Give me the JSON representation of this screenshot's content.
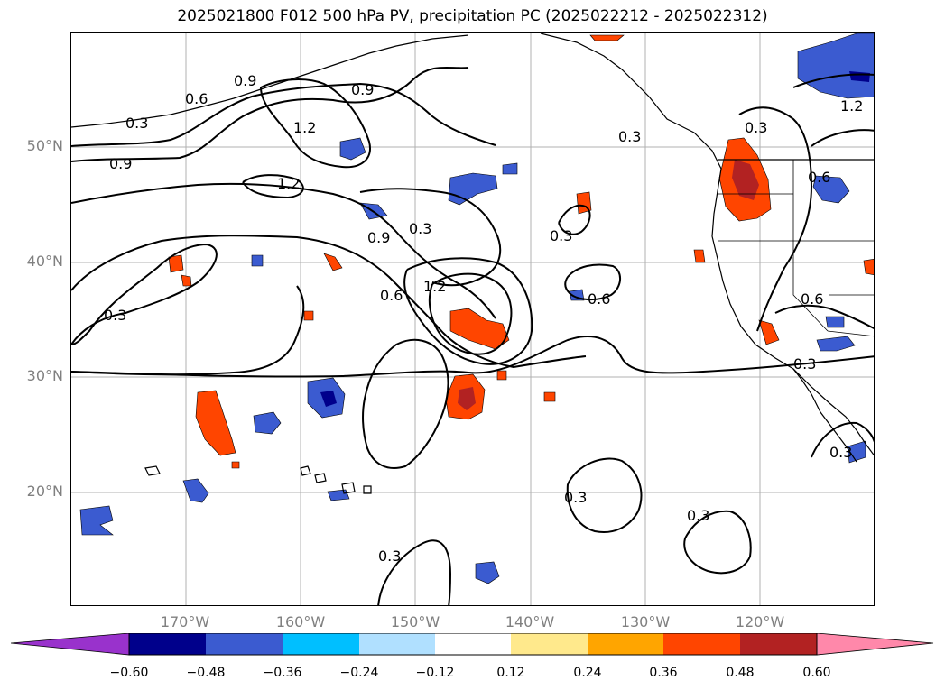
{
  "title": "2025021800 F012 500 hPa PV, precipitation PC (2025022212 - 2025022312)",
  "latitude_labels": [
    "50°N",
    "40°N",
    "30°N",
    "20°N"
  ],
  "longitude_labels": [
    "170°W",
    "160°W",
    "150°W",
    "140°W",
    "130°W",
    "120°W"
  ],
  "contour_labels": [
    "0.3",
    "0.6",
    "0.9",
    "1.2"
  ],
  "colorbar": {
    "ticks": [
      "−0.60",
      "−0.48",
      "−0.36",
      "−0.24",
      "−0.12",
      "0.12",
      "0.24",
      "0.36",
      "0.48",
      "0.60"
    ],
    "colors": [
      "#9932cc",
      "#00008b",
      "#3b5bd0",
      "#00bfff",
      "#b0e0ff",
      "#ffffff",
      "#ffe98c",
      "#ffa500",
      "#ff4500",
      "#b22222",
      "#ff88aa"
    ]
  },
  "map": {
    "lon_range": [
      -180,
      -110
    ],
    "lat_range": [
      10,
      60
    ],
    "gridlines": true
  }
}
